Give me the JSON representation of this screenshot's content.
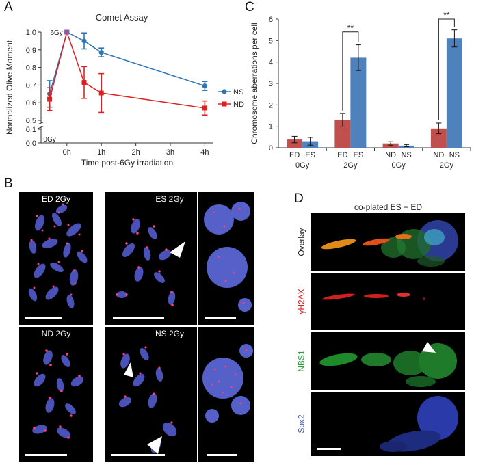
{
  "panels": {
    "A": {
      "letter": "A",
      "title": "Comet Assay",
      "ylabel": "Normalized Olive Moment",
      "xlabel": "Time post-6Gy irradiation",
      "annotation_6gy": "6Gy",
      "annotation_0gy": "0Gy"
    },
    "B": {
      "letter": "B",
      "labels": [
        "ED 2Gy",
        "ES 2Gy",
        "ND 2Gy",
        "NS 2Gy"
      ]
    },
    "C": {
      "letter": "C",
      "ylabel": "Chromosome aberrations per cell",
      "significance": "**"
    },
    "D": {
      "letter": "D",
      "title": "co-plated ES + ED",
      "rows": [
        {
          "label": "Overlay",
          "color": "#222222"
        },
        {
          "label": "γH2AX",
          "color": "#cc2222"
        },
        {
          "label": "NBS1",
          "color": "#2e9e3a"
        },
        {
          "label": "Sox2",
          "color": "#3a56b0"
        }
      ]
    }
  },
  "chart_data": [
    {
      "type": "line",
      "title": "Comet Assay",
      "xlabel": "Time post-6Gy irradiation",
      "ylabel": "Normalized Olive Moment",
      "x_tick_labels": [
        "0h",
        "1h",
        "2h",
        "3h",
        "4h"
      ],
      "x_ticks": [
        0,
        1,
        2,
        3,
        4
      ],
      "xlim": [
        -0.75,
        4.25
      ],
      "y_tick_labels_upper": [
        "0.5",
        "0.6",
        "0.7",
        "0.8",
        "0.9",
        "1.0"
      ],
      "y_tick_labels_lower": [
        "0.0",
        "0.1"
      ],
      "ylim_upper": [
        0.5,
        1.0
      ],
      "ylim_lower": [
        0.0,
        0.1
      ],
      "axis_break": true,
      "legend_position": "right",
      "series": [
        {
          "name": "NS",
          "color": "#2e75b6",
          "marker": "circle",
          "x": [
            -0.5,
            0,
            0.5,
            1,
            4
          ],
          "y": [
            0.65,
            1.0,
            0.95,
            0.885,
            0.695
          ],
          "err": [
            0.075,
            0.0,
            0.045,
            0.025,
            0.025
          ]
        },
        {
          "name": "ND",
          "color": "#e02020",
          "marker": "square",
          "x": [
            -0.5,
            0,
            0.5,
            1,
            4
          ],
          "y": [
            0.62,
            1.0,
            0.715,
            0.655,
            0.57
          ],
          "err": [
            0.065,
            0.0,
            0.09,
            0.11,
            0.04
          ]
        }
      ]
    },
    {
      "type": "bar",
      "ylabel": "Chromosome aberrations per cell",
      "ylim": [
        0,
        6
      ],
      "y_ticks": [
        0,
        1,
        2,
        3,
        4,
        5,
        6
      ],
      "groups": [
        {
          "dose": "0Gy",
          "bars": [
            {
              "label": "ED",
              "value": 0.38,
              "err": 0.15,
              "color": "#c0504d"
            },
            {
              "label": "ES",
              "value": 0.3,
              "err": 0.18,
              "color": "#4f81bd"
            }
          ]
        },
        {
          "dose": "2Gy",
          "bars": [
            {
              "label": "ED",
              "value": 1.3,
              "err": 0.3,
              "color": "#c0504d"
            },
            {
              "label": "ES",
              "value": 4.2,
              "err": 0.6,
              "color": "#4f81bd"
            }
          ],
          "significance": "**"
        },
        {
          "dose": "0Gy",
          "bars": [
            {
              "label": "ND",
              "value": 0.2,
              "err": 0.08,
              "color": "#c0504d"
            },
            {
              "label": "NS",
              "value": 0.1,
              "err": 0.05,
              "color": "#4f81bd"
            }
          ]
        },
        {
          "dose": "2Gy",
          "bars": [
            {
              "label": "ND",
              "value": 0.9,
              "err": 0.25,
              "color": "#c0504d"
            },
            {
              "label": "NS",
              "value": 5.1,
              "err": 0.4,
              "color": "#4f81bd"
            }
          ],
          "significance": "**"
        }
      ]
    }
  ]
}
